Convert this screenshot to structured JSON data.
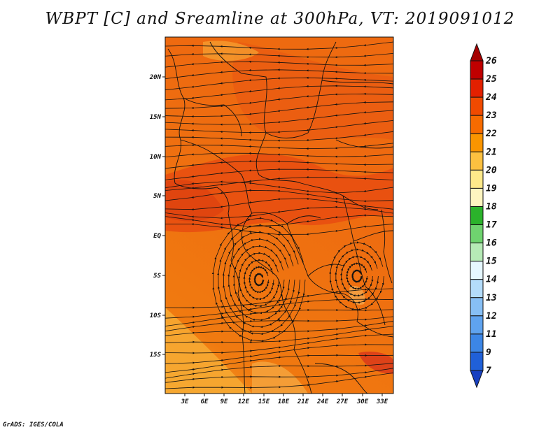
{
  "title": "WBPT [C] and Sreamline at 300hPa, VT: 2019091012",
  "credit": "GrADS: IGES/COLA",
  "map": {
    "y_ticks": [
      "20N",
      "15N",
      "10N",
      "5N",
      "EQ",
      "5S",
      "10S",
      "15S"
    ],
    "x_ticks": [
      "3E",
      "6E",
      "9E",
      "12E",
      "15E",
      "18E",
      "21E",
      "24E",
      "27E",
      "30E",
      "33E"
    ]
  },
  "colorbar": {
    "labels": [
      "26",
      "25",
      "24",
      "23",
      "22",
      "21",
      "20",
      "19",
      "18",
      "17",
      "16",
      "15",
      "14",
      "13",
      "12",
      "11",
      "9",
      "7"
    ],
    "colors": [
      "#a50000",
      "#c00000",
      "#e32000",
      "#f04a00",
      "#f76b00",
      "#fa9500",
      "#fcc040",
      "#fde98a",
      "#fef5c0",
      "#2bb32b",
      "#6fd36f",
      "#b6eab6",
      "#e6f7ff",
      "#b4dcfa",
      "#87bff5",
      "#5fa3ef",
      "#3c86e6",
      "#2060d8",
      "#1840c0"
    ]
  }
}
